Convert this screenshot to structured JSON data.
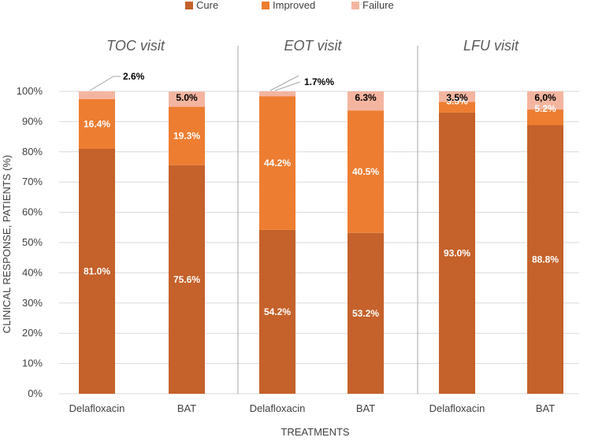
{
  "chart_data": {
    "type": "bar",
    "stacked": true,
    "ylabel": "CLINICAL RESPONSE, PATIENTS (%)",
    "xlabel": "TREATMENTS",
    "ylim": [
      0,
      100
    ],
    "yticks": [
      "0%",
      "10%",
      "20%",
      "30%",
      "40%",
      "50%",
      "60%",
      "70%",
      "80%",
      "90%",
      "100%"
    ],
    "legend": [
      {
        "name": "Cure",
        "color": "#c5612a"
      },
      {
        "name": "Improved",
        "color": "#ed7d31"
      },
      {
        "name": "Failure",
        "color": "#f4b5a0"
      }
    ],
    "panels": [
      {
        "title": "TOC visit",
        "bars": [
          {
            "category": "Delafloxacin",
            "cure": 81.0,
            "improved": 16.4,
            "failure": 2.6,
            "labels": {
              "cure": "81.0%",
              "improved": "16.4%",
              "failure": "2.6%"
            }
          },
          {
            "category": "BAT",
            "cure": 75.6,
            "improved": 19.3,
            "failure": 5.0,
            "labels": {
              "cure": "75.6%",
              "improved": "19.3%",
              "failure": "5.0%"
            }
          }
        ]
      },
      {
        "title": "EOT visit",
        "bars": [
          {
            "category": "Delafloxacin",
            "cure": 54.2,
            "improved": 44.2,
            "failure": 1.7,
            "labels": {
              "cure": "54.2%",
              "improved": "44.2%",
              "failure": "1.7%%"
            }
          },
          {
            "category": "BAT",
            "cure": 53.2,
            "improved": 40.5,
            "failure": 6.3,
            "labels": {
              "cure": "53.2%",
              "improved": "40.5%",
              "failure": "6.3%"
            }
          }
        ]
      },
      {
        "title": "LFU visit",
        "bars": [
          {
            "category": "Delafloxacin",
            "cure": 93.0,
            "improved": 3.5,
            "failure": 3.5,
            "labels": {
              "cure": "93.0%",
              "improved": "3.5%",
              "failure": "3.5%"
            }
          },
          {
            "category": "BAT",
            "cure": 88.8,
            "improved": 5.2,
            "failure": 6.0,
            "labels": {
              "cure": "88.8%",
              "improved": "5.2%",
              "failure": "6,0%"
            }
          }
        ]
      }
    ]
  }
}
